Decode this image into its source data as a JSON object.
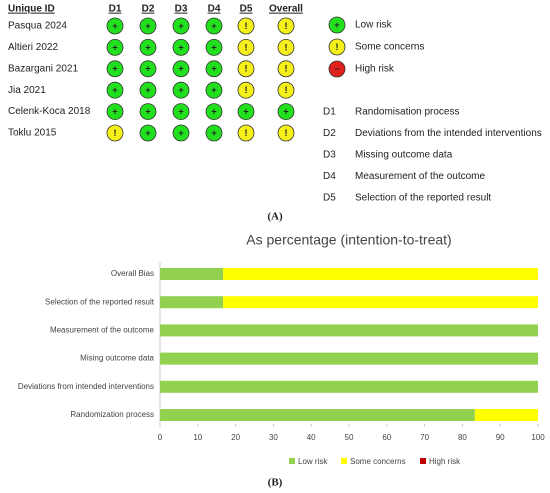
{
  "table": {
    "header": [
      "Unique ID",
      "D1",
      "D2",
      "D3",
      "D4",
      "D5",
      "Overall"
    ],
    "rows": [
      {
        "study": "Pasqua 2024",
        "cells": [
          "+",
          "+",
          "+",
          "+",
          "!",
          "!"
        ]
      },
      {
        "study": "Altieri 2022",
        "cells": [
          "+",
          "+",
          "+",
          "+",
          "!",
          "!"
        ]
      },
      {
        "study": "Bazargani 2021",
        "cells": [
          "+",
          "+",
          "+",
          "+",
          "!",
          "!"
        ]
      },
      {
        "study": "Jia 2021",
        "cells": [
          "+",
          "+",
          "+",
          "+",
          "!",
          "!"
        ]
      },
      {
        "study": "Celenk-Koca 2018",
        "cells": [
          "+",
          "+",
          "+",
          "+",
          "+",
          "+"
        ]
      },
      {
        "study": "Toklu 2015",
        "cells": [
          "!",
          "+",
          "+",
          "+",
          "!",
          "!"
        ]
      }
    ]
  },
  "judgement_legend": [
    {
      "symbol": "+",
      "label": "Low risk",
      "color": "#22e01e"
    },
    {
      "symbol": "!",
      "label": "Some concerns",
      "color": "#f5f01a"
    },
    {
      "symbol": "−",
      "label": "High risk",
      "color": "#e0201c"
    }
  ],
  "domains": [
    {
      "code": "D1",
      "label": "Randomisation process"
    },
    {
      "code": "D2",
      "label": "Deviations from the intended interventions"
    },
    {
      "code": "D3",
      "label": "Missing outcome data"
    },
    {
      "code": "D4",
      "label": "Measurement of the outcome"
    },
    {
      "code": "D5",
      "label": "Selection of the reported result"
    }
  ],
  "caption_a": "(A)",
  "caption_b": "(B)",
  "chart_data": {
    "type": "stacked_barh",
    "title": "As percentage (intention-to-treat)",
    "categories": [
      "Overall Bias",
      "Selection of the reported result",
      "Measurement of the outcome",
      "Mising outcome data",
      "Deviations from intended interventions",
      "Randomization process"
    ],
    "series": [
      {
        "name": "Low risk",
        "color": "#92d050",
        "values": [
          16.7,
          16.7,
          100,
          100,
          100,
          83.3
        ]
      },
      {
        "name": "Some concerns",
        "color": "#ffff00",
        "values": [
          83.3,
          83.3,
          0,
          0,
          0,
          16.7
        ]
      },
      {
        "name": "High risk",
        "color": "#c00000",
        "values": [
          0,
          0,
          0,
          0,
          0,
          0
        ]
      }
    ],
    "xlim": [
      0,
      100
    ],
    "xticks": [
      0,
      10,
      20,
      30,
      40,
      50,
      60,
      70,
      80,
      90,
      100
    ],
    "grid": false,
    "legend": "bottom"
  }
}
